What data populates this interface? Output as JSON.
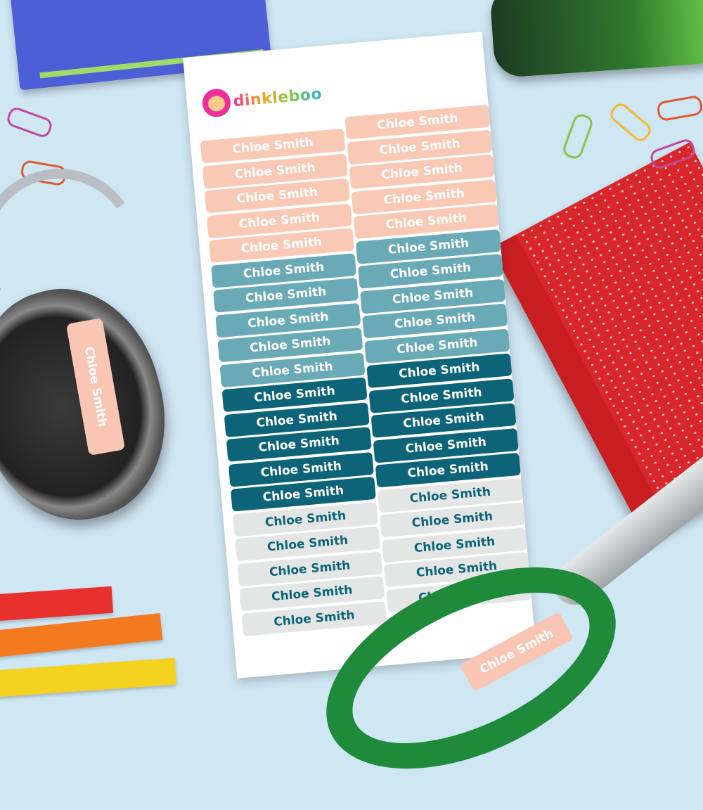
{
  "brand": {
    "logo_text": "dinkleboo"
  },
  "colors": {
    "background": "#cfe6f3",
    "peach": "#f9c9b6",
    "teal_light": "#6aaab6",
    "teal_dark": "#0d6479",
    "grey": "#e3e6e4",
    "text_light": "#ffffff",
    "text_teal": "#0d6479"
  },
  "sheet": {
    "left_column": [
      {
        "text": "Chloe Smith",
        "color": "peach"
      },
      {
        "text": "Chloe Smith",
        "color": "peach"
      },
      {
        "text": "Chloe Smith",
        "color": "peach"
      },
      {
        "text": "Chloe Smith",
        "color": "peach"
      },
      {
        "text": "Chloe Smith",
        "color": "peach"
      },
      {
        "text": "Chloe Smith",
        "color": "teal_light"
      },
      {
        "text": "Chloe Smith",
        "color": "teal_light"
      },
      {
        "text": "Chloe Smith",
        "color": "teal_light"
      },
      {
        "text": "Chloe Smith",
        "color": "teal_light"
      },
      {
        "text": "Chloe Smith",
        "color": "teal_light"
      },
      {
        "text": "Chloe Smith",
        "color": "teal_dark"
      },
      {
        "text": "Chloe Smith",
        "color": "teal_dark"
      },
      {
        "text": "Chloe Smith",
        "color": "teal_dark"
      },
      {
        "text": "Chloe Smith",
        "color": "teal_dark"
      },
      {
        "text": "Chloe Smith",
        "color": "teal_dark"
      },
      {
        "text": "Chloe Smith",
        "color": "grey"
      },
      {
        "text": "Chloe Smith",
        "color": "grey"
      },
      {
        "text": "Chloe Smith",
        "color": "grey"
      },
      {
        "text": "Chloe Smith",
        "color": "grey"
      },
      {
        "text": "Chloe Smith",
        "color": "grey"
      }
    ],
    "right_column": [
      {
        "text": "Chloe Smith",
        "color": "peach"
      },
      {
        "text": "Chloe Smith",
        "color": "peach"
      },
      {
        "text": "Chloe Smith",
        "color": "peach"
      },
      {
        "text": "Chloe Smith",
        "color": "peach"
      },
      {
        "text": "Chloe Smith",
        "color": "peach"
      },
      {
        "text": "Chloe Smith",
        "color": "teal_light"
      },
      {
        "text": "Chloe Smith",
        "color": "teal_light"
      },
      {
        "text": "Chloe Smith",
        "color": "teal_light"
      },
      {
        "text": "Chloe Smith",
        "color": "teal_light"
      },
      {
        "text": "Chloe Smith",
        "color": "teal_light"
      },
      {
        "text": "Chloe Smith",
        "color": "teal_dark"
      },
      {
        "text": "Chloe Smith",
        "color": "teal_dark"
      },
      {
        "text": "Chloe Smith",
        "color": "teal_dark"
      },
      {
        "text": "Chloe Smith",
        "color": "teal_dark"
      },
      {
        "text": "Chloe Smith",
        "color": "teal_dark"
      },
      {
        "text": "Chloe Smith",
        "color": "grey"
      },
      {
        "text": "Chloe Smith",
        "color": "grey"
      },
      {
        "text": "Chloe Smith",
        "color": "grey"
      },
      {
        "text": "Chloe Smith",
        "color": "grey"
      },
      {
        "text": "Chloe Smith",
        "color": "grey"
      }
    ]
  },
  "headphone_label": "Chloe Smith",
  "scissors_label": "Chloe Smith"
}
